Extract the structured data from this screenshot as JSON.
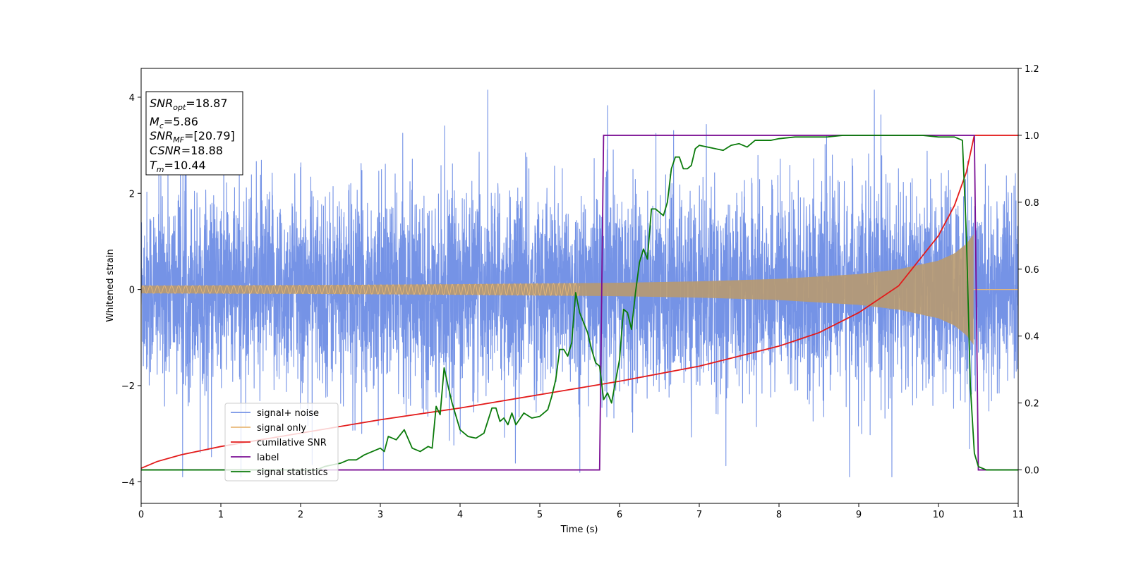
{
  "chart_data": {
    "type": "line",
    "xlabel": "Time (s)",
    "ylabel": "Whitened strain",
    "xlim": [
      0,
      11
    ],
    "ylim": [
      -4.45,
      4.6
    ],
    "ylim_right": [
      -0.1,
      1.2
    ],
    "x_ticks": [
      "0",
      "1",
      "2",
      "3",
      "4",
      "5",
      "6",
      "7",
      "8",
      "9",
      "10",
      "11"
    ],
    "y_ticks": [
      "−4",
      "−2",
      "0",
      "2",
      "4"
    ],
    "y_right_ticks": [
      "0.0",
      "0.2",
      "0.4",
      "0.6",
      "0.8",
      "1.0",
      "1.2"
    ],
    "grid": false,
    "legend_position": "lower-left",
    "info_box": {
      "snr_opt": {
        "name": "SNR",
        "sub": "opt",
        "value": "=18.87"
      },
      "mc": {
        "name": "M",
        "sub": "c",
        "value": "=5.86"
      },
      "snr_mf": {
        "name": "SNR",
        "sub": "MF",
        "value": "=[20.79]"
      },
      "csnr": {
        "name": "CSNR",
        "value": "=18.88"
      },
      "tm": {
        "name": "T",
        "sub": "m",
        "value": "=10.44"
      }
    },
    "series": [
      {
        "name": "signal+ noise",
        "color": "#7593e6",
        "axis": "left",
        "description_values": {
          "noise_std": 1.0,
          "spike_range": [
            -3.9,
            4.15
          ]
        }
      },
      {
        "name": "signal only",
        "color": "#e8b878",
        "axis": "left",
        "envelope": {
          "x": [
            0,
            2,
            4,
            6,
            7,
            8,
            9,
            9.5,
            10,
            10.2,
            10.35,
            10.44
          ],
          "y": [
            0.08,
            0.09,
            0.11,
            0.14,
            0.17,
            0.22,
            0.32,
            0.42,
            0.6,
            0.75,
            0.95,
            1.15
          ]
        }
      },
      {
        "name": "cumilative SNR",
        "color": "#e31a1a",
        "axis": "right",
        "x": [
          0,
          0.2,
          0.5,
          1,
          2,
          3,
          4,
          5,
          6,
          7,
          8,
          8.5,
          9,
          9.5,
          10,
          10.2,
          10.35,
          10.44,
          10.45,
          11
        ],
        "y": [
          0.005,
          0.025,
          0.045,
          0.07,
          0.11,
          0.15,
          0.185,
          0.225,
          0.265,
          0.31,
          0.37,
          0.41,
          0.47,
          0.55,
          0.7,
          0.79,
          0.89,
          0.99,
          1.0,
          1.0
        ]
      },
      {
        "name": "label",
        "color": "#7b0f94",
        "axis": "right",
        "x": [
          0,
          5.75,
          5.8,
          10.45,
          10.5,
          11
        ],
        "y": [
          0,
          0,
          1,
          1,
          0,
          0
        ]
      },
      {
        "name": "signal statistics",
        "color": "#0a7a0a",
        "axis": "right",
        "x": [
          0,
          0.5,
          1,
          1.5,
          2,
          2.2,
          2.3,
          2.4,
          2.5,
          2.6,
          2.7,
          2.8,
          2.9,
          3.0,
          3.05,
          3.1,
          3.2,
          3.3,
          3.4,
          3.5,
          3.6,
          3.65,
          3.7,
          3.75,
          3.8,
          3.85,
          3.9,
          3.95,
          4.0,
          4.1,
          4.2,
          4.3,
          4.4,
          4.45,
          4.5,
          4.55,
          4.6,
          4.65,
          4.7,
          4.8,
          4.9,
          5.0,
          5.1,
          5.15,
          5.2,
          5.25,
          5.3,
          5.35,
          5.4,
          5.45,
          5.5,
          5.55,
          5.6,
          5.65,
          5.7,
          5.75,
          5.8,
          5.85,
          5.9,
          6.0,
          6.05,
          6.1,
          6.15,
          6.2,
          6.25,
          6.3,
          6.35,
          6.4,
          6.45,
          6.5,
          6.55,
          6.6,
          6.65,
          6.7,
          6.75,
          6.8,
          6.85,
          6.9,
          6.95,
          7.0,
          7.1,
          7.2,
          7.3,
          7.4,
          7.5,
          7.6,
          7.7,
          7.8,
          7.9,
          8.0,
          8.2,
          8.4,
          8.6,
          8.8,
          9.0,
          9.2,
          9.4,
          9.6,
          9.8,
          10.0,
          10.2,
          10.3,
          10.35,
          10.4,
          10.45,
          10.5,
          10.55,
          10.6,
          10.7,
          11
        ],
        "y": [
          0.0,
          0.0,
          0.0,
          0.0,
          0.0,
          0.0,
          0.01,
          0.015,
          0.02,
          0.03,
          0.03,
          0.045,
          0.055,
          0.065,
          0.055,
          0.1,
          0.09,
          0.12,
          0.065,
          0.055,
          0.07,
          0.065,
          0.19,
          0.165,
          0.305,
          0.25,
          0.2,
          0.16,
          0.12,
          0.1,
          0.095,
          0.11,
          0.185,
          0.185,
          0.145,
          0.155,
          0.135,
          0.17,
          0.135,
          0.17,
          0.155,
          0.16,
          0.18,
          0.22,
          0.27,
          0.36,
          0.36,
          0.34,
          0.38,
          0.53,
          0.47,
          0.44,
          0.41,
          0.36,
          0.32,
          0.31,
          0.21,
          0.23,
          0.2,
          0.33,
          0.48,
          0.47,
          0.42,
          0.53,
          0.62,
          0.66,
          0.63,
          0.78,
          0.78,
          0.77,
          0.76,
          0.8,
          0.9,
          0.935,
          0.935,
          0.9,
          0.9,
          0.91,
          0.96,
          0.97,
          0.965,
          0.96,
          0.955,
          0.97,
          0.975,
          0.965,
          0.985,
          0.985,
          0.985,
          0.99,
          0.995,
          0.995,
          0.995,
          1.0,
          1.0,
          1.0,
          1.0,
          1.0,
          1.0,
          0.995,
          0.995,
          0.985,
          0.7,
          0.25,
          0.05,
          0.01,
          0.005,
          0.0,
          0.0,
          0.0
        ]
      }
    ]
  }
}
